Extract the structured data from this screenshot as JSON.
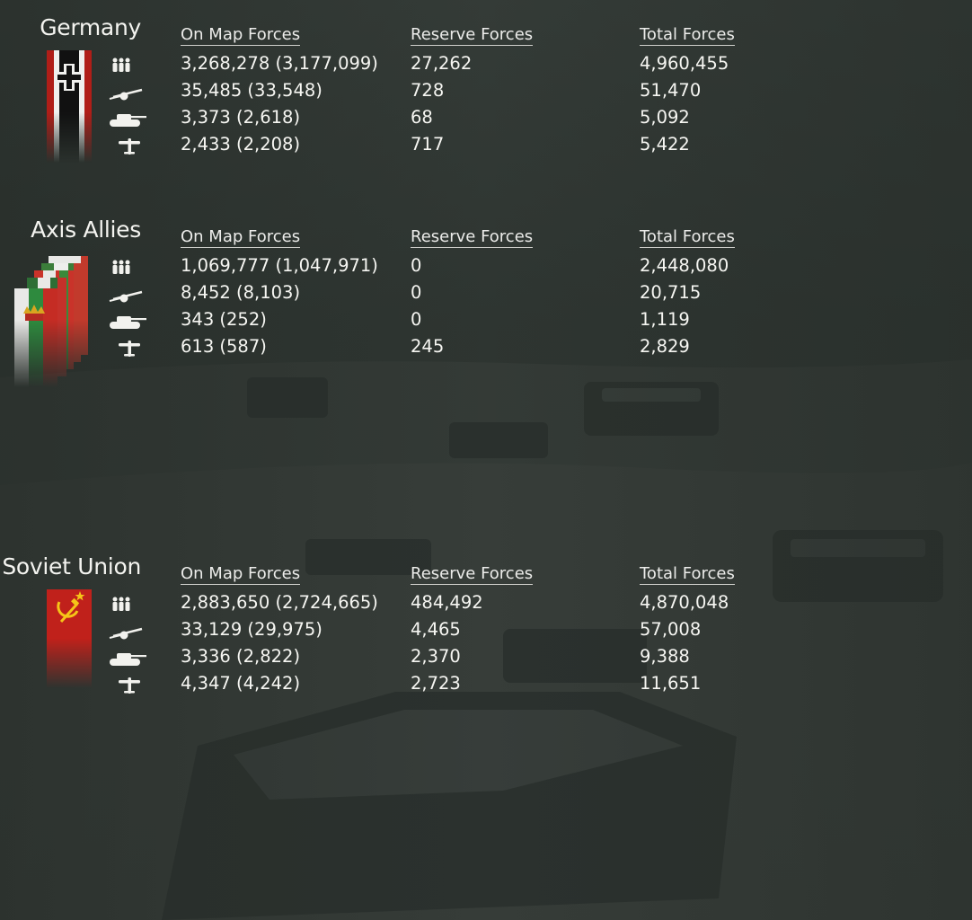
{
  "columns": {
    "on_map": "On Map Forces",
    "reserve": "Reserve Forces",
    "total": "Total Forces"
  },
  "row_icons": [
    "infantry-icon",
    "artillery-icon",
    "tank-icon",
    "aircraft-icon"
  ],
  "colors": {
    "background": "#2a302c",
    "text": "#f2f2ee",
    "germany_flag_red": "#b01e18",
    "soviet_flag_red": "#c0211b",
    "soviet_emblem": "#f5c518"
  },
  "nations": [
    {
      "name": "Germany",
      "rows": [
        {
          "on_map": "3,268,278 (3,177,099)",
          "reserve": "27,262",
          "total": "4,960,455"
        },
        {
          "on_map": "35,485 (33,548)",
          "reserve": "728",
          "total": "51,470"
        },
        {
          "on_map": "3,373 (2,618)",
          "reserve": "68",
          "total": "5,092"
        },
        {
          "on_map": "2,433 (2,208)",
          "reserve": "717",
          "total": "5,422"
        }
      ]
    },
    {
      "name": "Axis Allies",
      "rows": [
        {
          "on_map": "1,069,777 (1,047,971)",
          "reserve": "0",
          "total": "2,448,080"
        },
        {
          "on_map": "8,452 (8,103)",
          "reserve": "0",
          "total": "20,715"
        },
        {
          "on_map": "343 (252)",
          "reserve": "0",
          "total": "1,119"
        },
        {
          "on_map": "613 (587)",
          "reserve": "245",
          "total": "2,829"
        }
      ]
    },
    {
      "name": "Soviet Union",
      "rows": [
        {
          "on_map": "2,883,650 (2,724,665)",
          "reserve": "484,492",
          "total": "4,870,048"
        },
        {
          "on_map": "33,129 (29,975)",
          "reserve": "4,465",
          "total": "57,008"
        },
        {
          "on_map": "3,336 (2,822)",
          "reserve": "2,370",
          "total": "9,388"
        },
        {
          "on_map": "4,347 (4,242)",
          "reserve": "2,723",
          "total": "11,651"
        }
      ]
    }
  ]
}
